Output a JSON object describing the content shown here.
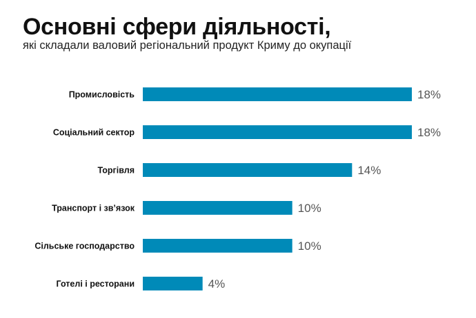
{
  "chart_data": {
    "type": "bar",
    "orientation": "horizontal",
    "title": "Основні сфери діяльності,",
    "subtitle": "які складали валовий регіональний продукт Криму до окупації",
    "categories": [
      "Промисловість",
      "Соціальний сектор",
      "Торгівля",
      "Транспорт і зв’язок",
      "Сільське господарство",
      "Готелі і ресторани"
    ],
    "values": [
      18,
      18,
      14,
      10,
      10,
      4
    ],
    "value_labels": [
      "18%",
      "18%",
      "14%",
      "10%",
      "10%",
      "4%"
    ],
    "xlabel": "",
    "ylabel": "",
    "xlim": [
      0,
      18
    ],
    "grid": false,
    "bar_color": "#008ab8"
  }
}
